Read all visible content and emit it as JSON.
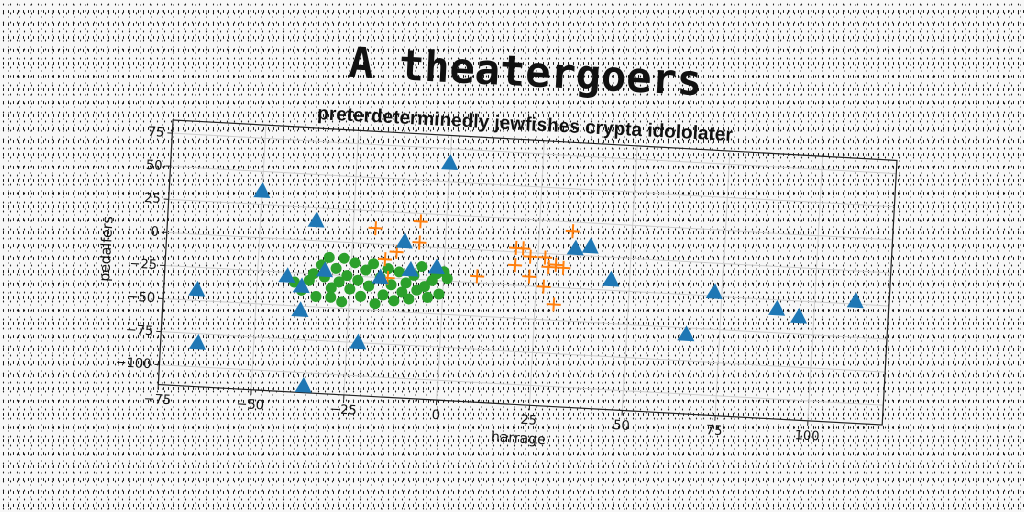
{
  "chart_data": {
    "type": "scatter",
    "title": "A theatergoers",
    "subtitle": "preterdeterminedly jewfishes crypta idololater",
    "xlabel": "harrage",
    "ylabel": "pedalfers",
    "xlim": [
      -75,
      120
    ],
    "ylim": [
      -115,
      85
    ],
    "xticks": [
      "−75",
      "−50",
      "−25",
      "0",
      "25",
      "50",
      "75",
      "100"
    ],
    "xtick_values": [
      -75,
      -50,
      -25,
      0,
      25,
      50,
      75,
      100
    ],
    "yticks": [
      "75",
      "50",
      "25",
      "0",
      "−25",
      "−50",
      "−75",
      "−100"
    ],
    "ytick_values": [
      75,
      50,
      25,
      0,
      -25,
      -50,
      -75,
      -100
    ],
    "grid": true,
    "series": [
      {
        "marker": "triangle",
        "color": "#1f77b4",
        "points": [
          [
            -66,
            -42
          ],
          [
            -65,
            -82
          ],
          [
            -50,
            35
          ],
          [
            -36,
            -110
          ],
          [
            -35,
            15
          ],
          [
            -38,
            -53
          ],
          [
            -42,
            -28
          ],
          [
            -38,
            -35
          ],
          [
            -32,
            -22
          ],
          [
            -22,
            -75
          ],
          [
            -17,
            -25
          ],
          [
            -11,
            3
          ],
          [
            -9,
            -18
          ],
          [
            -2,
            -15
          ],
          [
            0,
            64
          ],
          [
            35,
            5
          ],
          [
            39,
            7
          ],
          [
            45,
            -17
          ],
          [
            66,
            -55
          ],
          [
            73,
            -22
          ],
          [
            90,
            -32
          ],
          [
            96,
            -37
          ],
          [
            111,
            -23
          ]
        ]
      },
      {
        "marker": "plus",
        "color": "#ff7f0e",
        "points": [
          [
            -19,
            12
          ],
          [
            -16,
            -11
          ],
          [
            -15,
            -25
          ],
          [
            -13,
            -5
          ],
          [
            -7,
            19
          ],
          [
            -7,
            3
          ],
          [
            9,
            -20
          ],
          [
            19,
            3
          ],
          [
            21,
            3
          ],
          [
            19,
            -10
          ],
          [
            23,
            -3
          ],
          [
            23,
            -18
          ],
          [
            27,
            -3
          ],
          [
            27,
            -25
          ],
          [
            28,
            -10
          ],
          [
            30,
            -8
          ],
          [
            30,
            -38
          ],
          [
            32,
            -10
          ],
          [
            34,
            18
          ]
        ]
      },
      {
        "marker": "circle",
        "color": "#2ca02c",
        "points": [
          [
            -40,
            -32
          ],
          [
            -38,
            -38
          ],
          [
            -36,
            -30
          ],
          [
            -35,
            -25
          ],
          [
            -34,
            -42
          ],
          [
            -33,
            -18
          ],
          [
            -32,
            -27
          ],
          [
            -31,
            -12
          ],
          [
            -30,
            -35
          ],
          [
            -30,
            -42
          ],
          [
            -29,
            -20
          ],
          [
            -28,
            -30
          ],
          [
            -27,
            -12
          ],
          [
            -27,
            -45
          ],
          [
            -26,
            -25
          ],
          [
            -25,
            -35
          ],
          [
            -24,
            -15
          ],
          [
            -23,
            -28
          ],
          [
            -22,
            -40
          ],
          [
            -21,
            -20
          ],
          [
            -20,
            -32
          ],
          [
            -19,
            -15
          ],
          [
            -18,
            -45
          ],
          [
            -17,
            -25
          ],
          [
            -16,
            -38
          ],
          [
            -15,
            -18
          ],
          [
            -14,
            -30
          ],
          [
            -13,
            -42
          ],
          [
            -12,
            -20
          ],
          [
            -11,
            -35
          ],
          [
            -10,
            -28
          ],
          [
            -9,
            -40
          ],
          [
            -8,
            -22
          ],
          [
            -7,
            -33
          ],
          [
            -6,
            -15
          ],
          [
            -5,
            -30
          ],
          [
            -4,
            -38
          ],
          [
            -3,
            -25
          ],
          [
            -2,
            -20
          ],
          [
            -1,
            -35
          ],
          [
            0,
            -18
          ],
          [
            1,
            -23
          ]
        ]
      }
    ]
  }
}
